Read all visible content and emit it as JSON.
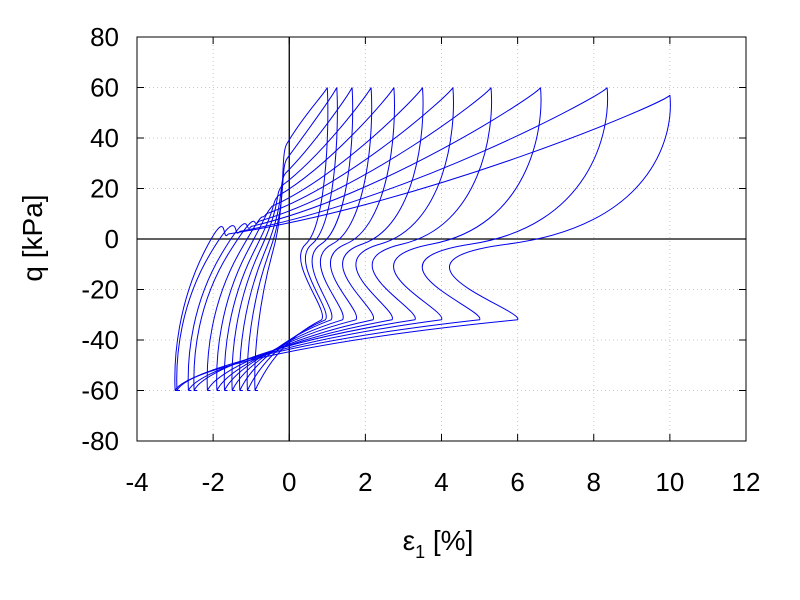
{
  "chart_data": {
    "type": "line",
    "title": "",
    "xlabel": {
      "main": "ε",
      "sub": "1",
      "unit": " [%]"
    },
    "ylabel": "q [kPa]",
    "xlim": [
      -4,
      12
    ],
    "ylim": [
      -80,
      80
    ],
    "xticks": [
      -4,
      -2,
      0,
      2,
      4,
      6,
      8,
      10,
      12
    ],
    "yticks": [
      -80,
      -60,
      -40,
      -20,
      0,
      20,
      40,
      60,
      80
    ],
    "grid": true,
    "zero_lines": true,
    "color": "#0000ee",
    "loops": [
      {
        "peak": [
          1.0,
          60
        ],
        "trough": [
          -0.9,
          -60
        ],
        "pivotR": [
          -0.05,
          38
        ],
        "pivotL": [
          0.85,
          -32
        ],
        "bulge": 1.0
      },
      {
        "peak": [
          1.25,
          60
        ],
        "trough": [
          -1.1,
          -60
        ],
        "pivotR": [
          -0.05,
          32
        ],
        "pivotL": [
          0.95,
          -32
        ],
        "bulge": 1.1
      },
      {
        "peak": [
          1.65,
          60
        ],
        "trough": [
          -1.3,
          -60
        ],
        "pivotR": [
          -0.1,
          26
        ],
        "pivotL": [
          1.1,
          -32
        ],
        "bulge": 1.2
      },
      {
        "peak": [
          2.15,
          60
        ],
        "trough": [
          -1.5,
          -60
        ],
        "pivotR": [
          -0.2,
          21
        ],
        "pivotL": [
          1.4,
          -32
        ],
        "bulge": 1.3
      },
      {
        "peak": [
          2.75,
          60
        ],
        "trough": [
          -1.7,
          -60
        ],
        "pivotR": [
          -0.3,
          17
        ],
        "pivotL": [
          1.75,
          -32
        ],
        "bulge": 1.4
      },
      {
        "peak": [
          3.5,
          60
        ],
        "trough": [
          -1.9,
          -60
        ],
        "pivotR": [
          -0.45,
          13
        ],
        "pivotL": [
          2.2,
          -32
        ],
        "bulge": 1.5
      },
      {
        "peak": [
          4.3,
          60
        ],
        "trough": [
          -2.15,
          -60
        ],
        "pivotR": [
          -0.6,
          10
        ],
        "pivotL": [
          2.7,
          -32
        ],
        "bulge": 1.6
      },
      {
        "peak": [
          5.3,
          60
        ],
        "trough": [
          -2.5,
          -60
        ],
        "pivotR": [
          -0.8,
          7
        ],
        "pivotL": [
          3.3,
          -32
        ],
        "bulge": 1.7
      },
      {
        "peak": [
          6.6,
          60
        ],
        "trough": [
          -2.65,
          -60
        ],
        "pivotR": [
          -1.0,
          5
        ],
        "pivotL": [
          4.0,
          -32
        ],
        "bulge": 1.8
      },
      {
        "peak": [
          8.35,
          60
        ],
        "trough": [
          -2.95,
          -60
        ],
        "pivotR": [
          -1.3,
          3
        ],
        "pivotL": [
          5.0,
          -32
        ],
        "bulge": 1.9
      },
      {
        "peak": [
          10.0,
          57
        ],
        "trough": [
          -3.0,
          -60
        ],
        "pivotR": [
          -1.6,
          2
        ],
        "pivotL": [
          6.0,
          -32
        ],
        "bulge": 2.0
      }
    ]
  }
}
